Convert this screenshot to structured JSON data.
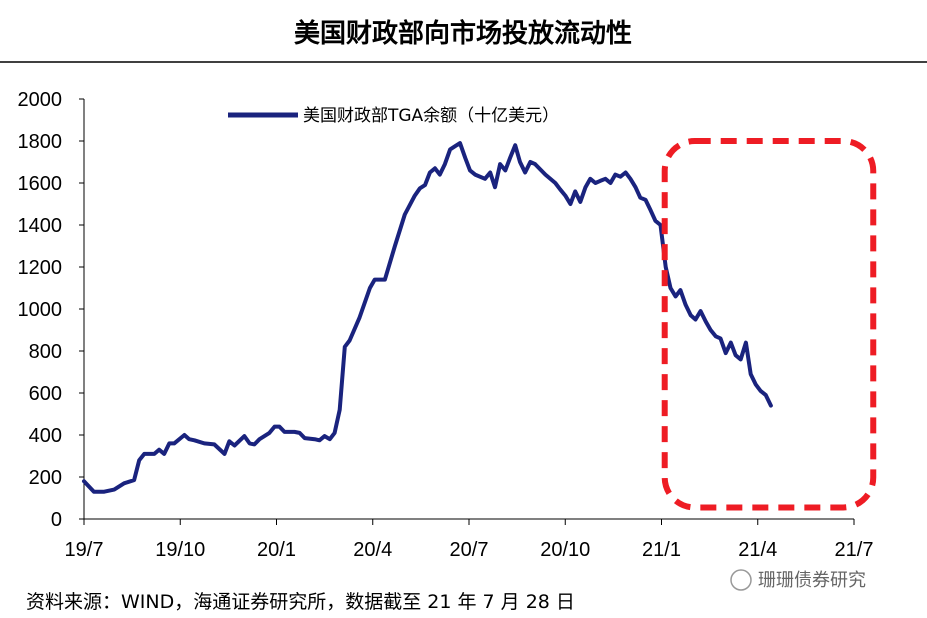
{
  "chart_data": {
    "type": "line",
    "title": "美国财政部向市场投放流动性",
    "xlabel": "",
    "ylabel": "",
    "ylim": [
      0,
      2000
    ],
    "yticks": [
      0,
      200,
      400,
      600,
      800,
      1000,
      1200,
      1400,
      1600,
      1800,
      2000
    ],
    "x_range": [
      0,
      24
    ],
    "x_ticks": [
      {
        "label": "19/7",
        "x": 0
      },
      {
        "label": "19/10",
        "x": 3
      },
      {
        "label": "20/1",
        "x": 6
      },
      {
        "label": "20/4",
        "x": 9
      },
      {
        "label": "20/7",
        "x": 12
      },
      {
        "label": "20/10",
        "x": 15
      },
      {
        "label": "21/1",
        "x": 18
      },
      {
        "label": "21/4",
        "x": 21
      },
      {
        "label": "21/7",
        "x": 24
      }
    ],
    "legend_position": "top-center",
    "series": [
      {
        "name": "美国财政部TGA余额（十亿美元）",
        "color": "#1a237e",
        "points": [
          [
            0.0,
            180
          ],
          [
            0.31,
            130
          ],
          [
            0.63,
            130
          ],
          [
            0.94,
            140
          ],
          [
            1.25,
            170
          ],
          [
            1.56,
            185
          ],
          [
            1.72,
            280
          ],
          [
            1.88,
            310
          ],
          [
            2.19,
            310
          ],
          [
            2.34,
            330
          ],
          [
            2.5,
            310
          ],
          [
            2.66,
            360
          ],
          [
            2.81,
            360
          ],
          [
            3.13,
            400
          ],
          [
            3.28,
            380
          ],
          [
            3.44,
            375
          ],
          [
            3.75,
            360
          ],
          [
            4.06,
            355
          ],
          [
            4.38,
            310
          ],
          [
            4.53,
            370
          ],
          [
            4.69,
            350
          ],
          [
            5.0,
            395
          ],
          [
            5.16,
            360
          ],
          [
            5.31,
            355
          ],
          [
            5.47,
            380
          ],
          [
            5.78,
            410
          ],
          [
            5.94,
            440
          ],
          [
            6.09,
            440
          ],
          [
            6.25,
            415
          ],
          [
            6.56,
            415
          ],
          [
            6.72,
            410
          ],
          [
            6.88,
            385
          ],
          [
            7.19,
            380
          ],
          [
            7.34,
            375
          ],
          [
            7.5,
            395
          ],
          [
            7.66,
            380
          ],
          [
            7.81,
            410
          ],
          [
            7.97,
            520
          ],
          [
            8.13,
            820
          ],
          [
            8.28,
            850
          ],
          [
            8.59,
            960
          ],
          [
            8.91,
            1100
          ],
          [
            9.06,
            1140
          ],
          [
            9.38,
            1140
          ],
          [
            9.69,
            1300
          ],
          [
            10.0,
            1450
          ],
          [
            10.31,
            1540
          ],
          [
            10.47,
            1575
          ],
          [
            10.63,
            1590
          ],
          [
            10.78,
            1650
          ],
          [
            10.94,
            1670
          ],
          [
            11.09,
            1640
          ],
          [
            11.25,
            1690
          ],
          [
            11.41,
            1760
          ],
          [
            11.56,
            1775
          ],
          [
            11.72,
            1790
          ],
          [
            11.88,
            1720
          ],
          [
            12.03,
            1660
          ],
          [
            12.19,
            1640
          ],
          [
            12.5,
            1620
          ],
          [
            12.66,
            1650
          ],
          [
            12.81,
            1580
          ],
          [
            12.97,
            1690
          ],
          [
            13.13,
            1660
          ],
          [
            13.28,
            1720
          ],
          [
            13.44,
            1780
          ],
          [
            13.59,
            1700
          ],
          [
            13.75,
            1650
          ],
          [
            13.91,
            1700
          ],
          [
            14.06,
            1690
          ],
          [
            14.38,
            1640
          ],
          [
            14.69,
            1600
          ],
          [
            14.84,
            1570
          ],
          [
            15.0,
            1540
          ],
          [
            15.16,
            1500
          ],
          [
            15.31,
            1560
          ],
          [
            15.47,
            1510
          ],
          [
            15.63,
            1580
          ],
          [
            15.78,
            1620
          ],
          [
            15.94,
            1600
          ],
          [
            16.09,
            1610
          ],
          [
            16.25,
            1620
          ],
          [
            16.41,
            1600
          ],
          [
            16.56,
            1640
          ],
          [
            16.72,
            1630
          ],
          [
            16.88,
            1650
          ],
          [
            17.03,
            1620
          ],
          [
            17.19,
            1580
          ],
          [
            17.34,
            1530
          ],
          [
            17.5,
            1520
          ],
          [
            17.66,
            1470
          ],
          [
            17.81,
            1420
          ],
          [
            17.97,
            1400
          ],
          [
            18.13,
            1200
          ],
          [
            18.28,
            1100
          ],
          [
            18.44,
            1060
          ],
          [
            18.59,
            1090
          ],
          [
            18.75,
            1020
          ],
          [
            18.91,
            970
          ],
          [
            19.06,
            950
          ],
          [
            19.22,
            990
          ],
          [
            19.38,
            940
          ],
          [
            19.53,
            900
          ],
          [
            19.69,
            870
          ],
          [
            19.84,
            860
          ],
          [
            20.0,
            790
          ],
          [
            20.16,
            840
          ],
          [
            20.31,
            780
          ],
          [
            20.47,
            760
          ],
          [
            20.63,
            840
          ],
          [
            20.78,
            690
          ],
          [
            20.94,
            640
          ],
          [
            21.09,
            610
          ],
          [
            21.25,
            590
          ],
          [
            21.41,
            540
          ]
        ]
      }
    ],
    "highlight_box": {
      "x_start": 18.1,
      "x_end": 24.6,
      "y_top": 1800,
      "y_bottom": 55,
      "color": "#ee1c24",
      "style": "dashed"
    }
  },
  "legend": {
    "label": "美国财政部TGA余额（十亿美元）"
  },
  "source": "资料来源：WIND，海通证券研究所，数据截至 21 年 7 月 28 日",
  "watermark": "珊珊债券研究",
  "colors": {
    "line": "#1a237e",
    "highlight": "#ee1c24",
    "axis": "#000000"
  }
}
